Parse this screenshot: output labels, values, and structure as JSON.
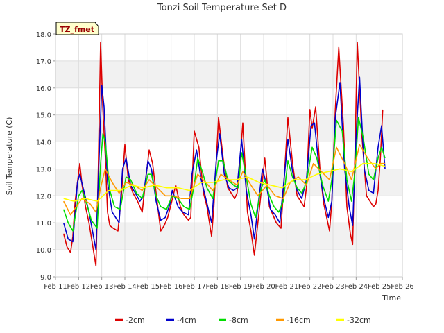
{
  "chart_data": {
    "type": "line",
    "title": "Tonzi Soil Temperature Set D",
    "site_label": "TZ_fmet",
    "xlabel": "Time",
    "ylabel": "Soil Temperature (C)",
    "xlim": [
      11,
      26
    ],
    "ylim": [
      9.0,
      18.0
    ],
    "x_ticks": [
      11,
      12,
      13,
      14,
      15,
      16,
      17,
      18,
      19,
      20,
      21,
      22,
      23,
      24,
      25,
      26
    ],
    "x_tick_labels": [
      "Feb 11",
      "Feb 12",
      "Feb 13",
      "Feb 14",
      "Feb 15",
      "Feb 16",
      "Feb 17",
      "Feb 18",
      "Feb 19",
      "Feb 20",
      "Feb 21",
      "Feb 22",
      "Feb 23",
      "Feb 24",
      "Feb 25",
      "Feb 26"
    ],
    "y_ticks": [
      9.0,
      10.0,
      11.0,
      12.0,
      13.0,
      14.0,
      15.0,
      16.0,
      17.0,
      18.0
    ],
    "y_tick_labels": [
      "9.0",
      "10.0",
      "11.0",
      "12.0",
      "13.0",
      "14.0",
      "15.0",
      "16.0",
      "17.0",
      "18.0"
    ],
    "grid": true,
    "legend_position": "bottom-center",
    "series": [
      {
        "name": "-2cm",
        "color": "#dd0000",
        "x": [
          11.35,
          11.5,
          11.65,
          11.75,
          11.85,
          12.05,
          12.15,
          12.3,
          12.45,
          12.6,
          12.75,
          12.85,
          12.95,
          13.05,
          13.15,
          13.25,
          13.35,
          13.5,
          13.7,
          13.85,
          14.0,
          14.15,
          14.35,
          14.55,
          14.75,
          14.9,
          15.05,
          15.2,
          15.45,
          15.55,
          15.7,
          15.85,
          16.0,
          16.2,
          16.4,
          16.55,
          16.75,
          16.85,
          17.0,
          17.2,
          17.4,
          17.55,
          17.75,
          17.85,
          18.05,
          18.25,
          18.45,
          18.6,
          18.75,
          18.85,
          18.95,
          19.1,
          19.3,
          19.45,
          19.6,
          19.75,
          19.9,
          20.05,
          20.25,
          20.45,
          20.55,
          20.75,
          20.85,
          21.05,
          21.25,
          21.45,
          21.6,
          21.75,
          21.85,
          22.0,
          22.1,
          22.25,
          22.45,
          22.6,
          22.75,
          22.85,
          22.95,
          23.1,
          23.25,
          23.45,
          23.6,
          23.75,
          23.85,
          23.95,
          24.05,
          24.25,
          24.45,
          24.6,
          24.75,
          24.85,
          24.95,
          25.05,
          25.15
        ],
        "values": [
          10.6,
          10.1,
          9.9,
          10.5,
          11.8,
          13.2,
          12.4,
          11.6,
          11.0,
          10.2,
          9.4,
          13.0,
          17.7,
          15.2,
          13.5,
          11.4,
          10.9,
          10.8,
          10.7,
          12.0,
          13.9,
          12.6,
          12.1,
          11.8,
          11.4,
          12.6,
          13.7,
          13.2,
          11.4,
          10.7,
          10.9,
          11.2,
          11.7,
          12.4,
          11.6,
          11.3,
          11.1,
          11.2,
          14.4,
          13.8,
          12.1,
          11.6,
          10.5,
          11.6,
          14.9,
          13.4,
          12.3,
          12.1,
          11.9,
          12.1,
          13.0,
          14.7,
          11.4,
          10.7,
          9.8,
          11.0,
          12.2,
          13.4,
          11.6,
          11.2,
          11.0,
          10.8,
          12.1,
          14.9,
          13.2,
          12.0,
          11.8,
          11.6,
          12.3,
          15.2,
          14.5,
          15.3,
          12.8,
          11.7,
          11.1,
          10.7,
          11.8,
          15.2,
          17.5,
          14.6,
          11.6,
          10.6,
          10.2,
          13.6,
          17.7,
          14.2,
          12.0,
          11.8,
          11.6,
          11.7,
          12.2,
          13.4,
          15.2
        ]
      },
      {
        "name": "-4cm",
        "color": "#0000cc",
        "x": [
          11.35,
          11.55,
          11.75,
          11.95,
          12.05,
          12.25,
          12.45,
          12.6,
          12.75,
          12.85,
          13.0,
          13.1,
          13.25,
          13.45,
          13.6,
          13.75,
          13.9,
          14.05,
          14.25,
          14.45,
          14.65,
          14.8,
          15.0,
          15.15,
          15.35,
          15.55,
          15.75,
          15.95,
          16.05,
          16.3,
          16.5,
          16.75,
          16.9,
          17.1,
          17.3,
          17.5,
          17.75,
          17.95,
          18.1,
          18.3,
          18.5,
          18.7,
          18.85,
          19.05,
          19.25,
          19.45,
          19.6,
          19.75,
          19.95,
          20.1,
          20.3,
          20.5,
          20.7,
          20.85,
          21.05,
          21.25,
          21.45,
          21.65,
          21.85,
          22.05,
          22.2,
          22.4,
          22.6,
          22.8,
          22.95,
          23.1,
          23.3,
          23.5,
          23.7,
          23.85,
          24.0,
          24.15,
          24.35,
          24.55,
          24.75,
          24.95,
          25.1,
          25.25
        ],
        "values": [
          11.0,
          10.4,
          10.3,
          12.5,
          12.8,
          12.1,
          11.4,
          10.7,
          10.0,
          12.6,
          16.1,
          15.3,
          12.5,
          11.4,
          11.2,
          11.0,
          13.0,
          13.4,
          12.4,
          12.1,
          11.8,
          12.0,
          13.3,
          13.0,
          11.8,
          11.1,
          11.2,
          11.7,
          12.2,
          11.6,
          11.4,
          11.3,
          12.8,
          13.7,
          12.6,
          11.9,
          11.0,
          13.3,
          14.3,
          12.8,
          12.3,
          12.2,
          12.3,
          14.1,
          12.2,
          11.3,
          10.4,
          11.6,
          13.0,
          12.5,
          11.5,
          11.3,
          11.0,
          12.3,
          14.1,
          12.9,
          12.2,
          11.9,
          12.6,
          14.6,
          14.7,
          13.0,
          11.9,
          11.2,
          11.8,
          14.9,
          16.2,
          13.0,
          11.6,
          10.9,
          14.2,
          16.4,
          13.0,
          12.2,
          12.1,
          13.8,
          14.6,
          13.0
        ]
      },
      {
        "name": "-8cm",
        "color": "#00dd00",
        "x": [
          11.35,
          11.55,
          11.75,
          12.0,
          12.15,
          12.35,
          12.55,
          12.8,
          12.95,
          13.05,
          13.15,
          13.35,
          13.55,
          13.8,
          14.05,
          14.25,
          14.5,
          14.75,
          15.0,
          15.15,
          15.35,
          15.55,
          15.8,
          16.05,
          16.3,
          16.55,
          16.8,
          17.0,
          17.15,
          17.35,
          17.55,
          17.8,
          18.05,
          18.25,
          18.45,
          18.7,
          18.9,
          19.05,
          19.25,
          19.45,
          19.65,
          19.9,
          20.05,
          20.25,
          20.45,
          20.65,
          20.85,
          21.05,
          21.25,
          21.45,
          21.65,
          21.85,
          22.1,
          22.3,
          22.55,
          22.8,
          22.95,
          23.15,
          23.4,
          23.6,
          23.8,
          23.95,
          24.1,
          24.3,
          24.55,
          24.75,
          24.95,
          25.1,
          25.25
        ],
        "values": [
          11.5,
          11.0,
          10.7,
          12.0,
          12.2,
          11.7,
          11.1,
          10.8,
          13.2,
          14.3,
          14.0,
          12.2,
          11.6,
          11.5,
          12.7,
          12.6,
          12.1,
          11.9,
          12.8,
          12.8,
          12.0,
          11.6,
          11.5,
          12.0,
          11.9,
          11.6,
          11.5,
          12.4,
          13.4,
          12.9,
          12.3,
          11.9,
          13.3,
          13.3,
          12.6,
          12.4,
          12.3,
          13.6,
          12.7,
          11.7,
          11.2,
          12.3,
          12.6,
          12.0,
          11.6,
          11.4,
          11.8,
          13.3,
          12.7,
          12.3,
          12.1,
          12.5,
          13.8,
          13.4,
          12.4,
          11.8,
          12.6,
          14.8,
          14.4,
          12.6,
          11.8,
          12.9,
          14.9,
          14.2,
          12.8,
          12.6,
          13.4,
          13.8,
          13.4
        ]
      },
      {
        "name": "-16cm",
        "color": "#ff9900",
        "x": [
          11.35,
          11.65,
          11.9,
          12.15,
          12.5,
          12.75,
          12.95,
          13.15,
          13.45,
          13.75,
          14.05,
          14.4,
          14.75,
          15.05,
          15.4,
          15.75,
          16.1,
          16.45,
          16.8,
          17.15,
          17.5,
          17.8,
          18.15,
          18.5,
          18.85,
          19.1,
          19.45,
          19.75,
          20.15,
          20.5,
          20.85,
          21.15,
          21.5,
          21.85,
          22.15,
          22.5,
          22.85,
          23.15,
          23.5,
          23.8,
          24.15,
          24.5,
          24.85,
          25.05,
          25.25
        ],
        "values": [
          11.8,
          11.3,
          11.6,
          11.9,
          11.7,
          11.4,
          12.3,
          13.0,
          12.5,
          12.1,
          12.5,
          12.4,
          12.2,
          12.6,
          12.3,
          12.0,
          12.0,
          11.9,
          11.9,
          12.8,
          12.5,
          12.2,
          12.8,
          12.6,
          12.4,
          12.9,
          12.4,
          12.0,
          12.4,
          12.0,
          11.9,
          12.5,
          12.7,
          12.4,
          13.2,
          12.9,
          12.6,
          13.8,
          13.2,
          12.6,
          13.9,
          13.4,
          13.0,
          13.2,
          13.2
        ]
      },
      {
        "name": "-32cm",
        "color": "#ffff00",
        "x": [
          11.35,
          11.8,
          12.3,
          12.8,
          13.3,
          13.8,
          14.3,
          14.8,
          15.3,
          15.8,
          16.3,
          16.8,
          17.3,
          17.8,
          18.3,
          18.8,
          19.3,
          19.8,
          20.3,
          20.8,
          21.3,
          21.8,
          22.3,
          22.8,
          23.3,
          23.8,
          24.3,
          24.8,
          25.25
        ],
        "values": [
          11.9,
          11.8,
          11.9,
          11.8,
          12.2,
          12.2,
          12.4,
          12.3,
          12.4,
          12.3,
          12.3,
          12.2,
          12.5,
          12.5,
          12.6,
          12.6,
          12.7,
          12.5,
          12.4,
          12.3,
          12.6,
          12.6,
          12.8,
          12.9,
          13.0,
          12.9,
          13.2,
          13.2,
          13.1
        ]
      }
    ]
  }
}
